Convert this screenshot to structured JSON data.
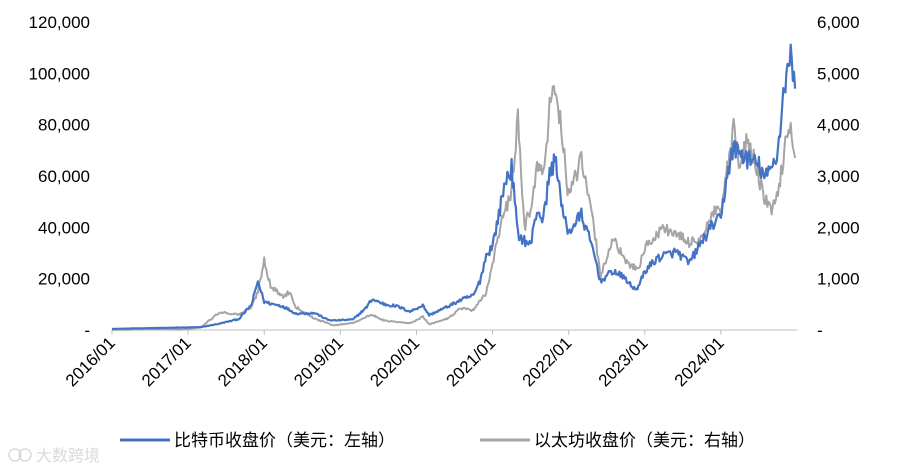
{
  "chart_data": {
    "type": "line",
    "x_ticks": [
      "2016/01",
      "2017/01",
      "2018/01",
      "2019/01",
      "2020/01",
      "2021/01",
      "2022/01",
      "2023/01",
      "2024/01"
    ],
    "y_left_ticks": [
      "-",
      "20,000",
      "40,000",
      "60,000",
      "80,000",
      "100,000",
      "120,000"
    ],
    "y_right_ticks": [
      "-",
      "1,000",
      "2,000",
      "3,000",
      "4,000",
      "5,000",
      "6,000"
    ],
    "y_left_range": [
      0,
      120000
    ],
    "y_right_range": [
      0,
      6000
    ],
    "x_range": [
      "2016/01",
      "2024/12"
    ],
    "grid": false,
    "legend_position": "bottom",
    "watermark": "大数跨境",
    "series": [
      {
        "name": "比特币收盘价（美元：左轴）",
        "axis": "left",
        "color": "#4472C4",
        "points": [
          [
            "2016/01",
            430
          ],
          [
            "2016/06",
            680
          ],
          [
            "2016/12",
            960
          ],
          [
            "2017/03",
            1100
          ],
          [
            "2017/06",
            2500
          ],
          [
            "2017/09",
            4300
          ],
          [
            "2017/11",
            9800
          ],
          [
            "2017/12",
            19000
          ],
          [
            "2018/01",
            11000
          ],
          [
            "2018/02",
            10300
          ],
          [
            "2018/04",
            9200
          ],
          [
            "2018/06",
            6400
          ],
          [
            "2018/09",
            6600
          ],
          [
            "2018/11",
            4000
          ],
          [
            "2018/12",
            3700
          ],
          [
            "2019/03",
            4100
          ],
          [
            "2019/05",
            8500
          ],
          [
            "2019/06",
            12000
          ],
          [
            "2019/08",
            10000
          ],
          [
            "2019/10",
            9200
          ],
          [
            "2019/12",
            7200
          ],
          [
            "2020/02",
            9600
          ],
          [
            "2020/03",
            5800
          ],
          [
            "2020/06",
            9200
          ],
          [
            "2020/08",
            11700
          ],
          [
            "2020/10",
            13500
          ],
          [
            "2020/11",
            19000
          ],
          [
            "2020/12",
            29000
          ],
          [
            "2021/01",
            33000
          ],
          [
            "2021/02",
            45000
          ],
          [
            "2021/03",
            58000
          ],
          [
            "2021/04",
            63000
          ],
          [
            "2021/05",
            37000
          ],
          [
            "2021/07",
            33000
          ],
          [
            "2021/08",
            47000
          ],
          [
            "2021/09",
            43000
          ],
          [
            "2021/10",
            61000
          ],
          [
            "2021/11",
            67000
          ],
          [
            "2021/12",
            46000
          ],
          [
            "2022/01",
            38000
          ],
          [
            "2022/03",
            45000
          ],
          [
            "2022/05",
            30000
          ],
          [
            "2022/06",
            19000
          ],
          [
            "2022/08",
            23000
          ],
          [
            "2022/10",
            20000
          ],
          [
            "2022/11",
            16500
          ],
          [
            "2022/12",
            16500
          ],
          [
            "2023/01",
            23000
          ],
          [
            "2023/03",
            28000
          ],
          [
            "2023/04",
            29000
          ],
          [
            "2023/06",
            30500
          ],
          [
            "2023/08",
            26000
          ],
          [
            "2023/10",
            34500
          ],
          [
            "2023/12",
            42000
          ],
          [
            "2024/01",
            43000
          ],
          [
            "2024/02",
            61000
          ],
          [
            "2024/03",
            71000
          ],
          [
            "2024/05",
            67000
          ],
          [
            "2024/07",
            64000
          ],
          [
            "2024/08",
            59000
          ],
          [
            "2024/09",
            63000
          ],
          [
            "2024/10",
            70000
          ],
          [
            "2024/11",
            96000
          ],
          [
            "2024/12",
            106000
          ],
          [
            "2024/12",
            94000
          ]
        ]
      },
      {
        "name": "以太坊收盘价（美元：右轴）",
        "axis": "right",
        "color": "#A5A5A5",
        "points": [
          [
            "2016/01",
            1
          ],
          [
            "2016/06",
            14
          ],
          [
            "2016/12",
            8
          ],
          [
            "2017/03",
            50
          ],
          [
            "2017/06",
            350
          ],
          [
            "2017/09",
            300
          ],
          [
            "2017/11",
            450
          ],
          [
            "2017/12",
            750
          ],
          [
            "2018/01",
            1380
          ],
          [
            "2018/02",
            850
          ],
          [
            "2018/04",
            650
          ],
          [
            "2018/05",
            750
          ],
          [
            "2018/06",
            450
          ],
          [
            "2018/09",
            220
          ],
          [
            "2018/12",
            90
          ],
          [
            "2019/03",
            140
          ],
          [
            "2019/06",
            300
          ],
          [
            "2019/08",
            180
          ],
          [
            "2019/12",
            130
          ],
          [
            "2020/02",
            260
          ],
          [
            "2020/03",
            110
          ],
          [
            "2020/06",
            230
          ],
          [
            "2020/08",
            430
          ],
          [
            "2020/10",
            380
          ],
          [
            "2020/12",
            730
          ],
          [
            "2021/01",
            1300
          ],
          [
            "2021/02",
            1900
          ],
          [
            "2021/04",
            2700
          ],
          [
            "2021/05",
            4100
          ],
          [
            "2021/06",
            2000
          ],
          [
            "2021/07",
            2400
          ],
          [
            "2021/08",
            3200
          ],
          [
            "2021/09",
            3000
          ],
          [
            "2021/10",
            4300
          ],
          [
            "2021/11",
            4800
          ],
          [
            "2021/12",
            3700
          ],
          [
            "2022/01",
            2600
          ],
          [
            "2022/03",
            3300
          ],
          [
            "2022/05",
            2000
          ],
          [
            "2022/06",
            1050
          ],
          [
            "2022/08",
            1800
          ],
          [
            "2022/10",
            1300
          ],
          [
            "2022/12",
            1200
          ],
          [
            "2023/01",
            1600
          ],
          [
            "2023/04",
            2000
          ],
          [
            "2023/06",
            1850
          ],
          [
            "2023/08",
            1700
          ],
          [
            "2023/10",
            1800
          ],
          [
            "2023/12",
            2300
          ],
          [
            "2024/01",
            2300
          ],
          [
            "2024/03",
            3900
          ],
          [
            "2024/04",
            3100
          ],
          [
            "2024/05",
            3700
          ],
          [
            "2024/06",
            3400
          ],
          [
            "2024/08",
            2500
          ],
          [
            "2024/09",
            2350
          ],
          [
            "2024/10",
            2600
          ],
          [
            "2024/11",
            3500
          ],
          [
            "2024/12",
            4000
          ],
          [
            "2024/12",
            3350
          ]
        ]
      }
    ]
  }
}
